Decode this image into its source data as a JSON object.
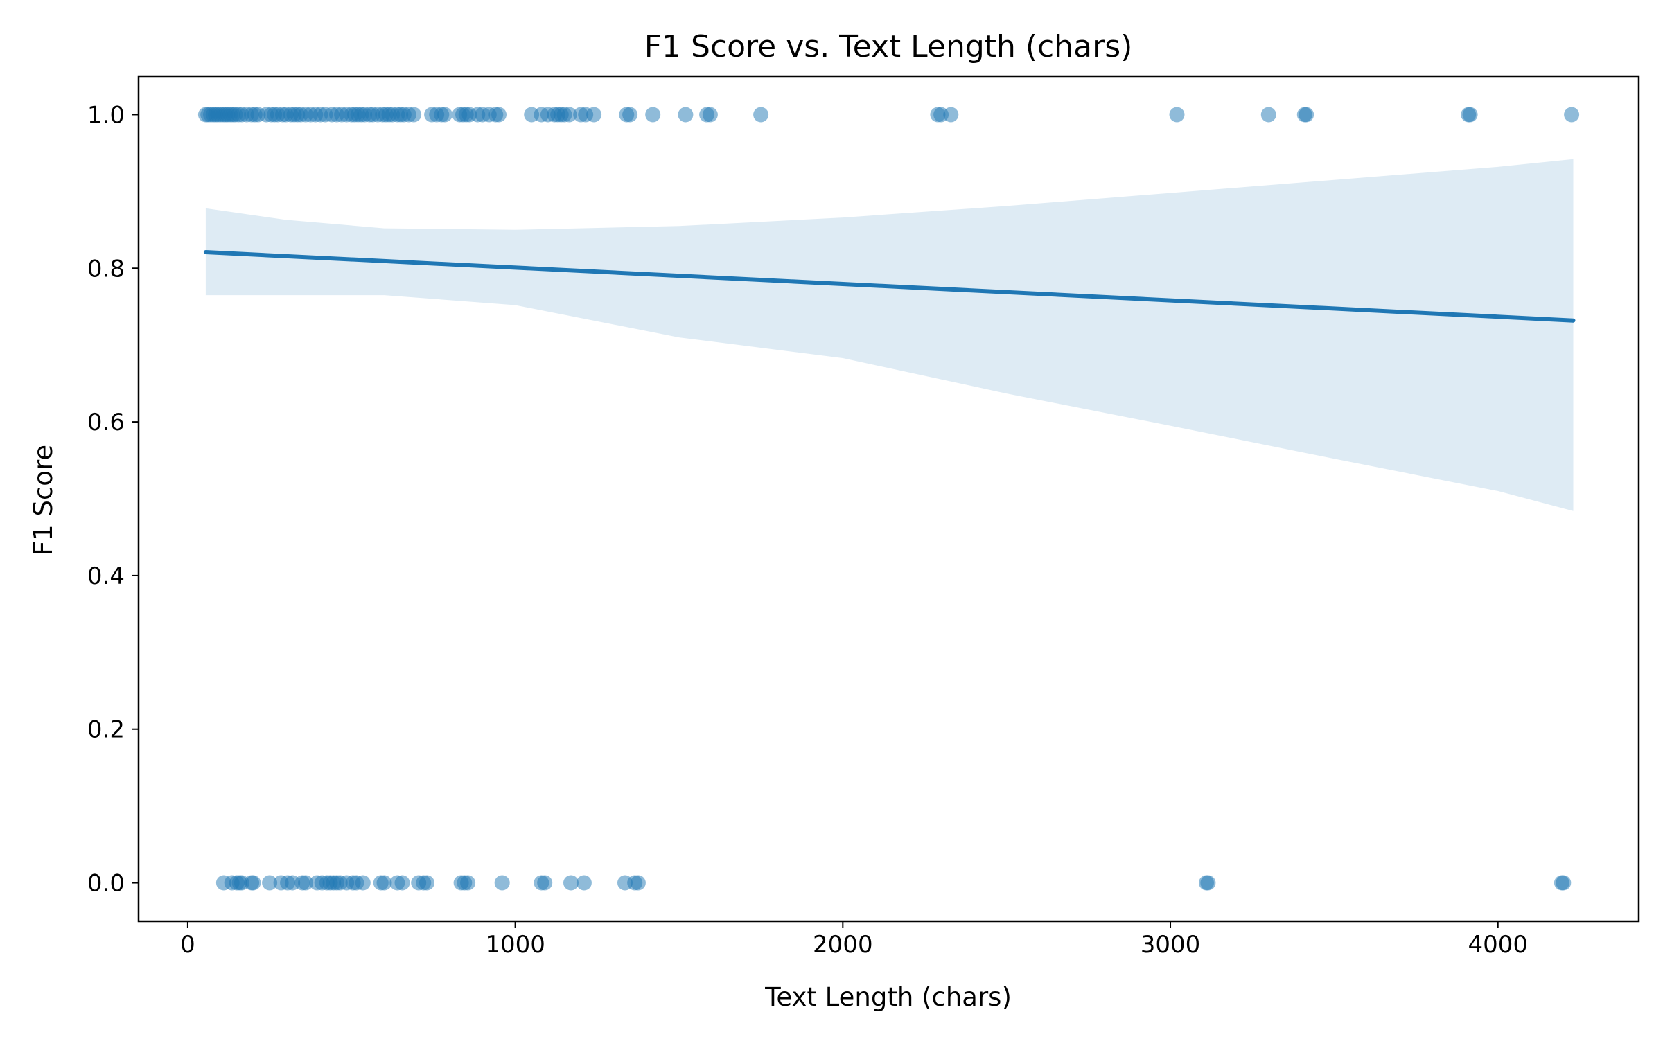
{
  "chart_data": {
    "type": "scatter",
    "title": "F1 Score vs. Text Length (chars)",
    "xlabel": "Text Length (chars)",
    "ylabel": "F1 Score",
    "xlim": [
      -150,
      4430
    ],
    "ylim": [
      -0.05,
      1.05
    ],
    "x_ticks": [
      0,
      1000,
      2000,
      3000,
      4000
    ],
    "x_tick_labels": [
      "0",
      "1000",
      "2000",
      "3000",
      "4000"
    ],
    "y_ticks": [
      0.0,
      0.2,
      0.4,
      0.6,
      0.8,
      1.0
    ],
    "y_tick_labels": [
      "0.0",
      "0.2",
      "0.4",
      "0.6",
      "0.8",
      "1.0"
    ],
    "grid": false,
    "colors": {
      "points": "#1f77b4",
      "regression_line": "#1f77b4",
      "confidence_band": "#1f77b4"
    },
    "series": [
      {
        "points_f1_1": [
          55,
          62,
          70,
          78,
          85,
          92,
          100,
          108,
          115,
          122,
          130,
          138,
          145,
          155,
          165,
          180,
          195,
          205,
          215,
          240,
          255,
          265,
          275,
          290,
          300,
          315,
          325,
          335,
          345,
          360,
          375,
          390,
          405,
          420,
          440,
          455,
          470,
          485,
          500,
          510,
          520,
          530,
          540,
          555,
          565,
          580,
          595,
          605,
          615,
          625,
          640,
          650,
          660,
          675,
          690,
          745,
          760,
          775,
          785,
          830,
          840,
          850,
          860,
          885,
          900,
          920,
          940,
          950,
          1050,
          1080,
          1100,
          1120,
          1130,
          1140,
          1150,
          1165,
          1200,
          1215,
          1240,
          1340,
          1350,
          1420,
          1520,
          1585,
          1595,
          1750,
          2290,
          2300,
          2330,
          3020,
          3300,
          3410,
          3415,
          3910,
          3915,
          4225
        ],
        "points_f1_0": [
          110,
          135,
          150,
          158,
          165,
          195,
          200,
          250,
          285,
          305,
          320,
          350,
          360,
          395,
          410,
          425,
          435,
          445,
          455,
          465,
          485,
          505,
          515,
          535,
          590,
          600,
          640,
          655,
          705,
          720,
          730,
          835,
          845,
          855,
          960,
          1080,
          1090,
          1170,
          1210,
          1335,
          1365,
          1375,
          3110,
          3115,
          4195,
          4200
        ]
      }
    ],
    "regression": {
      "x_range": [
        55,
        4230
      ],
      "y_at_start": 0.821,
      "y_at_end": 0.732,
      "ci_x": [
        55,
        300,
        600,
        1000,
        1500,
        2000,
        2500,
        3000,
        3500,
        4000,
        4230
      ],
      "ci_upper": [
        0.878,
        0.863,
        0.852,
        0.85,
        0.855,
        0.866,
        0.881,
        0.898,
        0.915,
        0.932,
        0.942
      ],
      "ci_lower": [
        0.765,
        0.765,
        0.765,
        0.752,
        0.71,
        0.683,
        0.637,
        0.595,
        0.552,
        0.51,
        0.484
      ]
    }
  }
}
